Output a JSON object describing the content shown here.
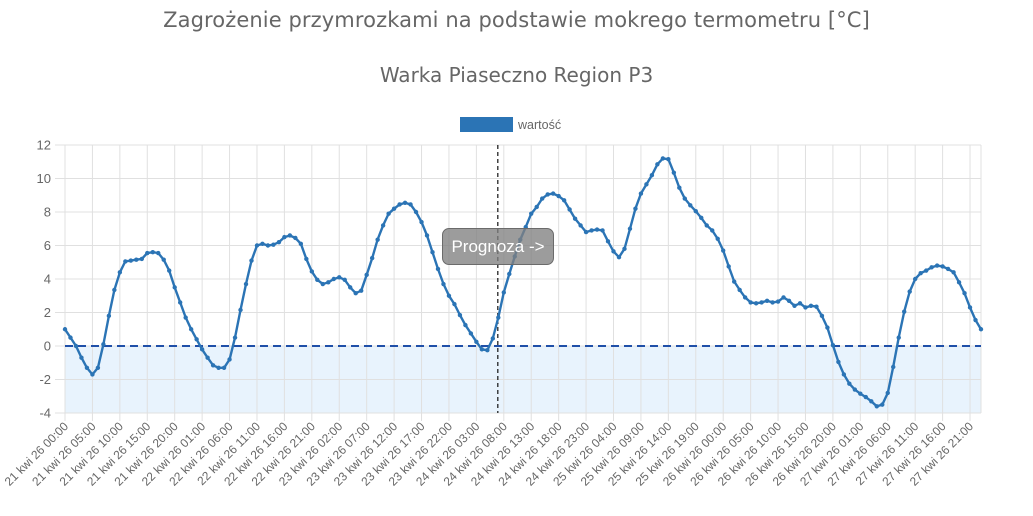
{
  "header": {
    "title": "Zagrożenie przymrozkami na podstawie mokrego termometru [°C]",
    "subtitle": "Warka Piaseczno Region P3"
  },
  "legend": {
    "label": "wartość",
    "color": "#2b74b5"
  },
  "annotation": {
    "label": "Prognoza ->",
    "forecast_start_index": 79
  },
  "colors": {
    "line": "#2b74b5",
    "zero_line": "#1f4fa8",
    "negative_fill": "#e8f3fd",
    "grid": "#e0e0e0",
    "text": "#666666"
  },
  "chart_data": {
    "type": "line",
    "title": "Zagrożenie przymrozkami na podstawie mokrego termometru [°C]",
    "subtitle": "Warka Piaseczno Region P3",
    "xlabel": "",
    "ylabel": "",
    "ylim": [
      -4,
      12
    ],
    "yticks": [
      12,
      10,
      8,
      6,
      4,
      2,
      0,
      -2,
      -4
    ],
    "grid": true,
    "legend_position": "top",
    "x_start": "21 kwi 26 00:00",
    "x_step_hours": 1,
    "xtick_labels": [
      "21 kwi 26 00:00",
      "21 kwi 26 05:00",
      "21 kwi 26 10:00",
      "21 kwi 26 15:00",
      "21 kwi 26 20:00",
      "22 kwi 26 01:00",
      "22 kwi 26 06:00",
      "22 kwi 26 11:00",
      "22 kwi 26 16:00",
      "22 kwi 26 21:00",
      "23 kwi 26 02:00",
      "23 kwi 26 07:00",
      "23 kwi 26 12:00",
      "23 kwi 26 17:00",
      "23 kwi 26 22:00",
      "24 kwi 26 03:00",
      "24 kwi 26 08:00",
      "24 kwi 26 13:00",
      "24 kwi 26 18:00",
      "24 kwi 26 23:00",
      "25 kwi 26 04:00",
      "25 kwi 26 09:00",
      "25 kwi 26 14:00",
      "25 kwi 26 19:00",
      "26 kwi 26 00:00",
      "26 kwi 26 05:00",
      "26 kwi 26 10:00",
      "26 kwi 26 15:00",
      "26 kwi 26 20:00",
      "27 kwi 26 01:00",
      "27 kwi 26 06:00",
      "27 kwi 26 11:00",
      "27 kwi 26 16:00",
      "27 kwi 26 21:00"
    ],
    "annotations": [
      {
        "type": "vertical_dashed_line",
        "at": "24 kwi 26 07:00",
        "label": "Prognoza ->"
      },
      {
        "type": "horizontal_dashed_line",
        "y": 0,
        "fill_below": true
      }
    ],
    "series": [
      {
        "name": "wartość",
        "values": [
          1.0,
          0.5,
          0.0,
          -0.7,
          -1.3,
          -1.7,
          -1.3,
          0.1,
          1.8,
          3.35,
          4.4,
          5.05,
          5.1,
          5.15,
          5.2,
          5.55,
          5.6,
          5.55,
          5.15,
          4.5,
          3.5,
          2.6,
          1.7,
          1.0,
          0.4,
          -0.2,
          -0.7,
          -1.15,
          -1.3,
          -1.3,
          -0.8,
          0.5,
          2.15,
          3.7,
          5.1,
          6.0,
          6.1,
          6.0,
          6.05,
          6.2,
          6.5,
          6.6,
          6.45,
          6.1,
          5.2,
          4.45,
          3.95,
          3.7,
          3.8,
          4.0,
          4.1,
          3.95,
          3.5,
          3.15,
          3.3,
          4.25,
          5.25,
          6.35,
          7.2,
          7.9,
          8.2,
          8.45,
          8.55,
          8.45,
          8.0,
          7.4,
          6.6,
          5.6,
          4.6,
          3.7,
          3.0,
          2.5,
          1.85,
          1.25,
          0.75,
          0.25,
          -0.2,
          -0.25,
          0.45,
          1.7,
          3.2,
          4.3,
          5.35,
          6.35,
          7.1,
          7.9,
          8.3,
          8.8,
          9.05,
          9.1,
          8.95,
          8.7,
          8.15,
          7.6,
          7.2,
          6.8,
          6.9,
          6.95,
          6.9,
          6.25,
          5.65,
          5.3,
          5.8,
          7.0,
          8.2,
          9.1,
          9.65,
          10.2,
          10.85,
          11.2,
          11.15,
          10.35,
          9.45,
          8.8,
          8.4,
          8.05,
          7.65,
          7.2,
          6.9,
          6.4,
          5.7,
          4.75,
          3.85,
          3.35,
          2.9,
          2.6,
          2.55,
          2.6,
          2.7,
          2.6,
          2.65,
          2.9,
          2.7,
          2.4,
          2.55,
          2.3,
          2.4,
          2.35,
          1.8,
          1.1,
          0.05,
          -0.95,
          -1.7,
          -2.25,
          -2.6,
          -2.85,
          -3.05,
          -3.3,
          -3.6,
          -3.5,
          -2.8,
          -1.25,
          0.5,
          2.05,
          3.25,
          4.0,
          4.35,
          4.5,
          4.7,
          4.8,
          4.75,
          4.6,
          4.4,
          3.8,
          3.15,
          2.3,
          1.55,
          1.0
        ]
      }
    ]
  }
}
